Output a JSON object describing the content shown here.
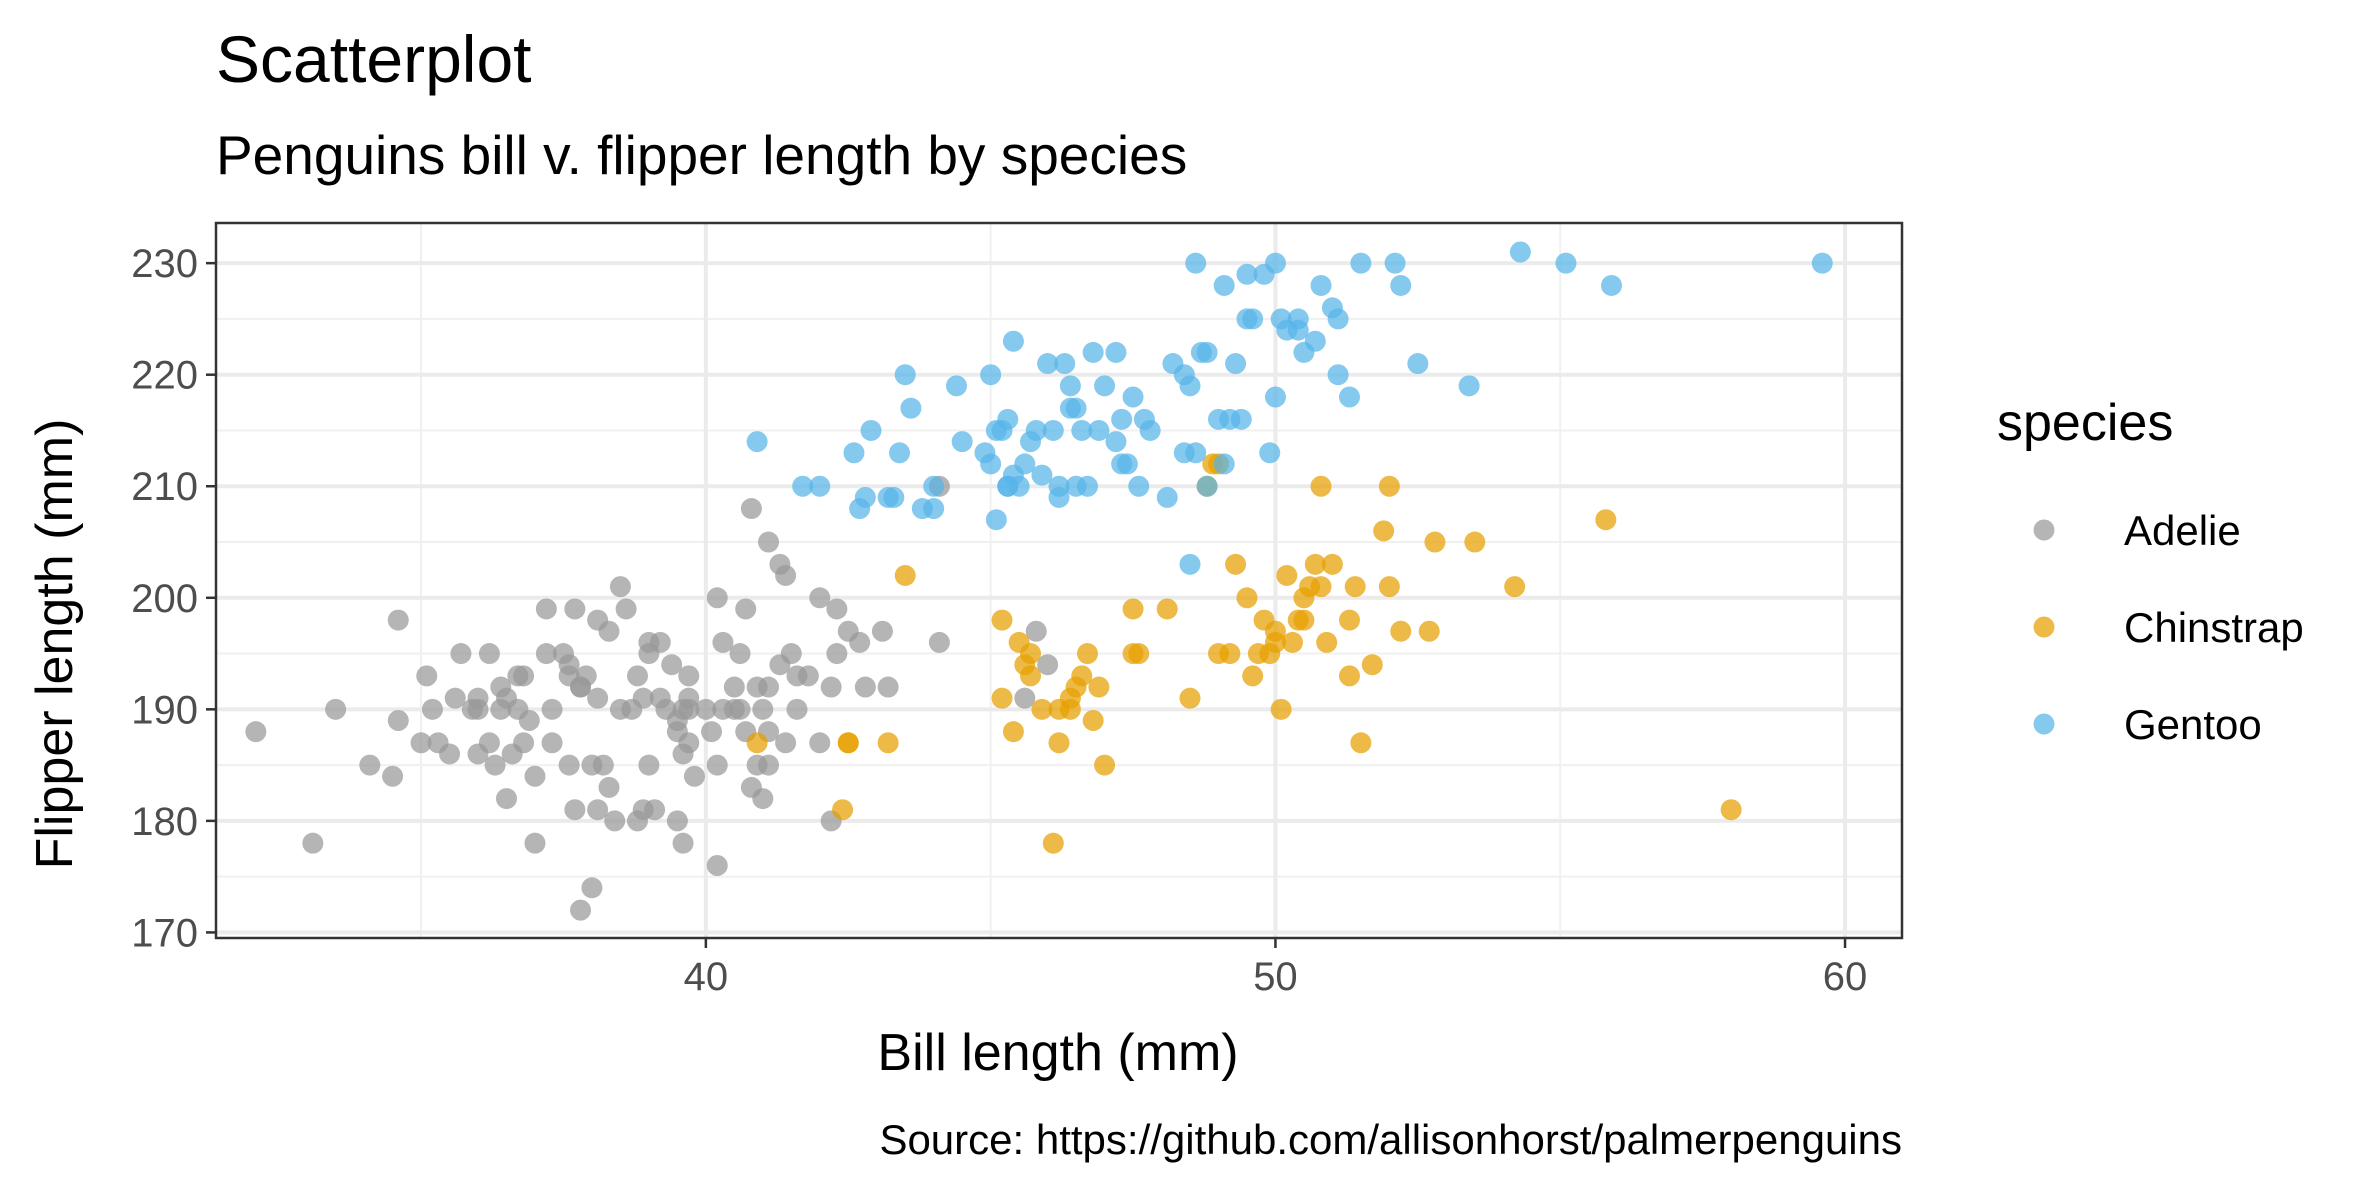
{
  "chart_data": {
    "type": "scatter",
    "title": "Scatterplot",
    "subtitle": "Penguins bill v. flipper length by species",
    "xlabel": "Bill length (mm)",
    "ylabel": "Flipper length (mm)",
    "caption": "Source: https://github.com/allisonhorst/palmerpenguins",
    "xlim": [
      31.4,
      61.0
    ],
    "ylim": [
      169.5,
      233.6
    ],
    "x_ticks": [
      40,
      50,
      60
    ],
    "x_tick_labels": [
      "40",
      "50",
      "60"
    ],
    "y_ticks": [
      170,
      180,
      190,
      200,
      210,
      220,
      230
    ],
    "y_tick_labels": [
      "170",
      "180",
      "190",
      "200",
      "210",
      "220",
      "230"
    ],
    "grid": true,
    "legend_title": "species",
    "legend_position": "right",
    "series": [
      {
        "name": "Adelie",
        "color": "#999999",
        "points": [
          [
            32.1,
            188
          ],
          [
            33.1,
            178
          ],
          [
            33.5,
            190
          ],
          [
            34.1,
            185
          ],
          [
            34.5,
            184
          ],
          [
            34.6,
            189
          ],
          [
            34.6,
            198
          ],
          [
            35.0,
            187
          ],
          [
            35.1,
            193
          ],
          [
            35.2,
            190
          ],
          [
            35.3,
            187
          ],
          [
            35.5,
            186
          ],
          [
            35.7,
            195
          ],
          [
            35.9,
            190
          ],
          [
            36.0,
            191
          ],
          [
            36.2,
            187
          ],
          [
            36.3,
            185
          ],
          [
            36.4,
            190
          ],
          [
            36.5,
            191
          ],
          [
            36.6,
            186
          ],
          [
            36.7,
            190
          ],
          [
            36.8,
            193
          ],
          [
            36.9,
            189
          ],
          [
            37.0,
            184
          ],
          [
            37.2,
            195
          ],
          [
            37.3,
            190
          ],
          [
            37.5,
            195
          ],
          [
            37.6,
            185
          ],
          [
            37.7,
            199
          ],
          [
            37.8,
            192
          ],
          [
            37.9,
            193
          ],
          [
            38.0,
            185
          ],
          [
            38.1,
            181
          ],
          [
            38.2,
            185
          ],
          [
            38.3,
            183
          ],
          [
            38.5,
            190
          ],
          [
            38.6,
            199
          ],
          [
            38.7,
            190
          ],
          [
            38.8,
            193
          ],
          [
            38.9,
            181
          ],
          [
            39.0,
            185
          ],
          [
            39.1,
            181
          ],
          [
            39.2,
            196
          ],
          [
            39.3,
            190
          ],
          [
            39.5,
            180
          ],
          [
            39.6,
            186
          ],
          [
            39.7,
            191
          ],
          [
            39.8,
            184
          ],
          [
            40.0,
            190
          ],
          [
            40.1,
            188
          ],
          [
            40.2,
            185
          ],
          [
            40.3,
            196
          ],
          [
            40.5,
            190
          ],
          [
            40.6,
            190
          ],
          [
            40.7,
            199
          ],
          [
            40.8,
            183
          ],
          [
            40.9,
            185
          ],
          [
            41.0,
            182
          ],
          [
            41.1,
            188
          ],
          [
            41.3,
            194
          ],
          [
            41.4,
            202
          ],
          [
            41.5,
            195
          ],
          [
            41.6,
            193
          ],
          [
            41.8,
            193
          ],
          [
            42.0,
            187
          ],
          [
            42.2,
            192
          ],
          [
            42.3,
            195
          ],
          [
            42.5,
            197
          ],
          [
            42.7,
            196
          ],
          [
            42.8,
            192
          ],
          [
            43.1,
            197
          ],
          [
            43.2,
            192
          ],
          [
            44.1,
            196
          ],
          [
            36.0,
            190
          ],
          [
            36.5,
            182
          ],
          [
            37.0,
            178
          ],
          [
            37.3,
            187
          ],
          [
            37.8,
            172
          ],
          [
            38.0,
            174
          ],
          [
            38.4,
            180
          ],
          [
            38.8,
            180
          ],
          [
            39.0,
            196
          ],
          [
            39.2,
            191
          ],
          [
            39.4,
            194
          ],
          [
            39.6,
            178
          ],
          [
            39.7,
            193
          ],
          [
            40.2,
            176
          ],
          [
            40.6,
            195
          ],
          [
            40.9,
            192
          ],
          [
            41.1,
            192
          ],
          [
            37.8,
            192
          ],
          [
            39.5,
            188
          ],
          [
            40.3,
            190
          ],
          [
            36.4,
            192
          ],
          [
            37.2,
            199
          ],
          [
            38.1,
            191
          ],
          [
            39.5,
            189
          ],
          [
            40.8,
            208
          ],
          [
            41.1,
            205
          ],
          [
            41.6,
            190
          ],
          [
            44.1,
            210
          ],
          [
            42.0,
            200
          ],
          [
            45.6,
            191
          ],
          [
            45.8,
            197
          ],
          [
            46.0,
            194
          ],
          [
            37.6,
            194
          ],
          [
            38.1,
            198
          ],
          [
            38.3,
            197
          ],
          [
            39.7,
            190
          ],
          [
            40.2,
            200
          ],
          [
            41.3,
            203
          ],
          [
            41.4,
            187
          ],
          [
            36.2,
            195
          ],
          [
            37.7,
            181
          ],
          [
            35.6,
            191
          ],
          [
            36.8,
            187
          ],
          [
            38.5,
            201
          ],
          [
            40.7,
            188
          ],
          [
            42.2,
            180
          ],
          [
            41.0,
            190
          ],
          [
            40.5,
            192
          ],
          [
            39.0,
            195
          ],
          [
            36.7,
            193
          ],
          [
            38.9,
            191
          ],
          [
            37.6,
            193
          ],
          [
            39.6,
            190
          ],
          [
            36.0,
            186
          ],
          [
            42.3,
            199
          ],
          [
            39.7,
            187
          ],
          [
            41.1,
            185
          ]
        ]
      },
      {
        "name": "Chinstrap",
        "color": "#E69F00",
        "points": [
          [
            40.9,
            187
          ],
          [
            42.4,
            181
          ],
          [
            42.5,
            187
          ],
          [
            43.2,
            187
          ],
          [
            43.5,
            202
          ],
          [
            45.2,
            198
          ],
          [
            45.2,
            191
          ],
          [
            45.4,
            188
          ],
          [
            45.5,
            196
          ],
          [
            45.6,
            194
          ],
          [
            45.7,
            195
          ],
          [
            45.9,
            190
          ],
          [
            46.1,
            178
          ],
          [
            46.2,
            187
          ],
          [
            46.4,
            191
          ],
          [
            46.5,
            192
          ],
          [
            46.6,
            193
          ],
          [
            46.7,
            195
          ],
          [
            46.8,
            189
          ],
          [
            46.9,
            192
          ],
          [
            47.0,
            185
          ],
          [
            47.5,
            199
          ],
          [
            47.6,
            195
          ],
          [
            48.1,
            199
          ],
          [
            48.5,
            191
          ],
          [
            48.8,
            210
          ],
          [
            49.0,
            212
          ],
          [
            49.2,
            195
          ],
          [
            49.3,
            203
          ],
          [
            49.5,
            200
          ],
          [
            49.6,
            193
          ],
          [
            49.7,
            195
          ],
          [
            49.8,
            198
          ],
          [
            50.0,
            197
          ],
          [
            50.1,
            190
          ],
          [
            50.2,
            202
          ],
          [
            50.3,
            196
          ],
          [
            50.4,
            198
          ],
          [
            50.5,
            200
          ],
          [
            50.6,
            201
          ],
          [
            50.7,
            203
          ],
          [
            50.8,
            201
          ],
          [
            50.9,
            196
          ],
          [
            51.0,
            203
          ],
          [
            51.3,
            193
          ],
          [
            51.4,
            201
          ],
          [
            51.5,
            187
          ],
          [
            51.7,
            194
          ],
          [
            51.9,
            206
          ],
          [
            52.0,
            210
          ],
          [
            52.0,
            201
          ],
          [
            52.2,
            197
          ],
          [
            52.7,
            197
          ],
          [
            52.8,
            205
          ],
          [
            53.5,
            205
          ],
          [
            54.2,
            201
          ],
          [
            55.8,
            207
          ],
          [
            58.0,
            181
          ],
          [
            51.3,
            198
          ],
          [
            50.8,
            210
          ],
          [
            50.0,
            196
          ],
          [
            49.9,
            195
          ],
          [
            46.4,
            190
          ],
          [
            46.2,
            190
          ],
          [
            45.7,
            193
          ],
          [
            42.5,
            187
          ],
          [
            47.5,
            195
          ],
          [
            48.9,
            212
          ],
          [
            50.5,
            198
          ],
          [
            49.0,
            195
          ]
        ]
      },
      {
        "name": "Gentoo",
        "color": "#56B4E9",
        "points": [
          [
            40.9,
            214
          ],
          [
            41.7,
            210
          ],
          [
            42.0,
            210
          ],
          [
            42.6,
            213
          ],
          [
            42.7,
            208
          ],
          [
            42.8,
            209
          ],
          [
            42.9,
            215
          ],
          [
            43.2,
            209
          ],
          [
            43.3,
            209
          ],
          [
            43.4,
            213
          ],
          [
            43.5,
            220
          ],
          [
            43.6,
            217
          ],
          [
            43.8,
            208
          ],
          [
            44.0,
            208
          ],
          [
            44.4,
            219
          ],
          [
            44.5,
            214
          ],
          [
            44.9,
            213
          ],
          [
            45.0,
            220
          ],
          [
            45.1,
            207
          ],
          [
            45.2,
            215
          ],
          [
            45.3,
            210
          ],
          [
            45.4,
            211
          ],
          [
            45.5,
            210
          ],
          [
            45.6,
            212
          ],
          [
            45.7,
            214
          ],
          [
            45.8,
            215
          ],
          [
            46.1,
            215
          ],
          [
            46.2,
            209
          ],
          [
            46.3,
            221
          ],
          [
            46.4,
            217
          ],
          [
            46.5,
            210
          ],
          [
            46.6,
            215
          ],
          [
            46.7,
            210
          ],
          [
            46.8,
            222
          ],
          [
            46.9,
            215
          ],
          [
            47.2,
            222
          ],
          [
            47.3,
            216
          ],
          [
            47.4,
            212
          ],
          [
            47.5,
            218
          ],
          [
            47.7,
            216
          ],
          [
            47.8,
            215
          ],
          [
            48.1,
            209
          ],
          [
            48.2,
            221
          ],
          [
            48.4,
            213
          ],
          [
            48.5,
            219
          ],
          [
            48.6,
            213
          ],
          [
            48.7,
            222
          ],
          [
            48.8,
            222
          ],
          [
            49.0,
            216
          ],
          [
            49.1,
            212
          ],
          [
            49.2,
            216
          ],
          [
            49.3,
            221
          ],
          [
            49.4,
            216
          ],
          [
            49.5,
            229
          ],
          [
            49.6,
            225
          ],
          [
            49.8,
            229
          ],
          [
            49.9,
            213
          ],
          [
            50.0,
            218
          ],
          [
            50.1,
            225
          ],
          [
            50.2,
            224
          ],
          [
            50.4,
            224
          ],
          [
            50.5,
            222
          ],
          [
            50.7,
            223
          ],
          [
            50.8,
            228
          ],
          [
            51.1,
            220
          ],
          [
            51.3,
            218
          ],
          [
            51.5,
            230
          ],
          [
            52.1,
            230
          ],
          [
            52.2,
            228
          ],
          [
            52.5,
            221
          ],
          [
            53.4,
            219
          ],
          [
            54.3,
            231
          ],
          [
            55.1,
            230
          ],
          [
            55.9,
            228
          ],
          [
            59.6,
            230
          ],
          [
            48.4,
            220
          ],
          [
            48.6,
            230
          ],
          [
            49.1,
            228
          ],
          [
            48.8,
            210
          ],
          [
            50.0,
            230
          ],
          [
            51.0,
            226
          ],
          [
            51.1,
            225
          ],
          [
            45.1,
            215
          ],
          [
            46.0,
            221
          ],
          [
            47.3,
            212
          ],
          [
            46.5,
            217
          ],
          [
            45.4,
            223
          ],
          [
            45.0,
            212
          ],
          [
            44.0,
            210
          ],
          [
            46.2,
            210
          ],
          [
            47.6,
            210
          ],
          [
            45.3,
            210
          ],
          [
            48.5,
            203
          ],
          [
            49.5,
            225
          ],
          [
            50.4,
            225
          ],
          [
            45.9,
            211
          ],
          [
            46.4,
            219
          ],
          [
            47.0,
            219
          ],
          [
            45.3,
            216
          ],
          [
            47.2,
            214
          ]
        ]
      }
    ]
  }
}
